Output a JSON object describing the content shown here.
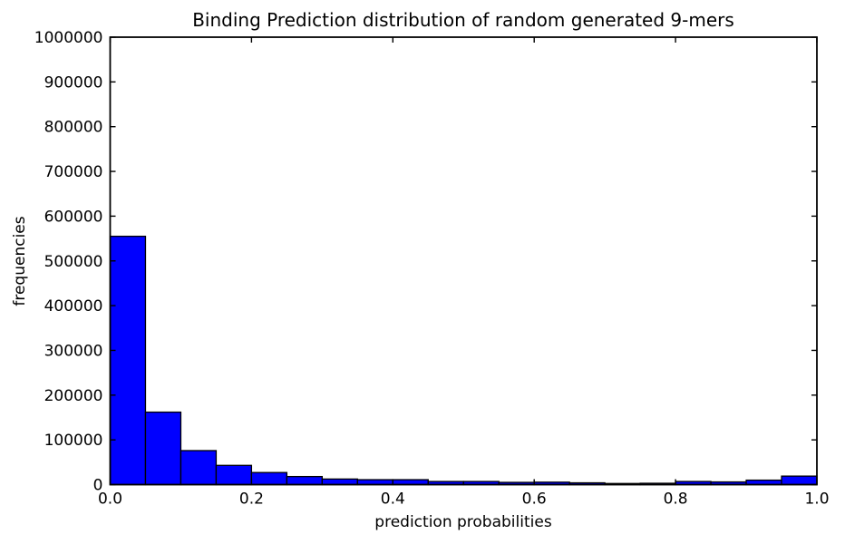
{
  "figure": {
    "background": "#ffffff"
  },
  "chart_data": {
    "type": "bar",
    "subtype": "histogram",
    "title": "Binding Prediction distribution of random generated 9-mers",
    "xlabel": "prediction probabilities",
    "ylabel": "frequencies",
    "xlim": [
      0.0,
      1.0
    ],
    "ylim": [
      0,
      1000000
    ],
    "bin_start": 0.0,
    "bin_width": 0.05,
    "bin_edges": [
      0.0,
      0.05,
      0.1,
      0.15,
      0.2,
      0.25,
      0.3,
      0.35,
      0.4,
      0.45,
      0.5,
      0.55,
      0.6,
      0.65,
      0.7,
      0.75,
      0.8,
      0.85,
      0.9,
      0.95,
      1.0
    ],
    "values": [
      555000,
      162000,
      76000,
      43000,
      27000,
      18000,
      12500,
      11000,
      11000,
      7000,
      7000,
      5000,
      5500,
      4000,
      2500,
      3000,
      7000,
      6000,
      10000,
      19000
    ],
    "xticks": {
      "positions": [
        0.0,
        0.2,
        0.4,
        0.6,
        0.8,
        1.0
      ],
      "labels": [
        "0.0",
        "0.2",
        "0.4",
        "0.6",
        "0.8",
        "1.0"
      ]
    },
    "yticks": {
      "positions": [
        0,
        100000,
        200000,
        300000,
        400000,
        500000,
        600000,
        700000,
        800000,
        900000,
        1000000
      ],
      "labels": [
        "0",
        "100000",
        "200000",
        "300000",
        "400000",
        "500000",
        "600000",
        "700000",
        "800000",
        "900000",
        "1000000"
      ]
    },
    "grid": false,
    "legend_position": "none",
    "bar_color": "#0000ff",
    "bar_edge_color": "#000000",
    "axis_color": "#000000",
    "text_color": "#000000"
  }
}
